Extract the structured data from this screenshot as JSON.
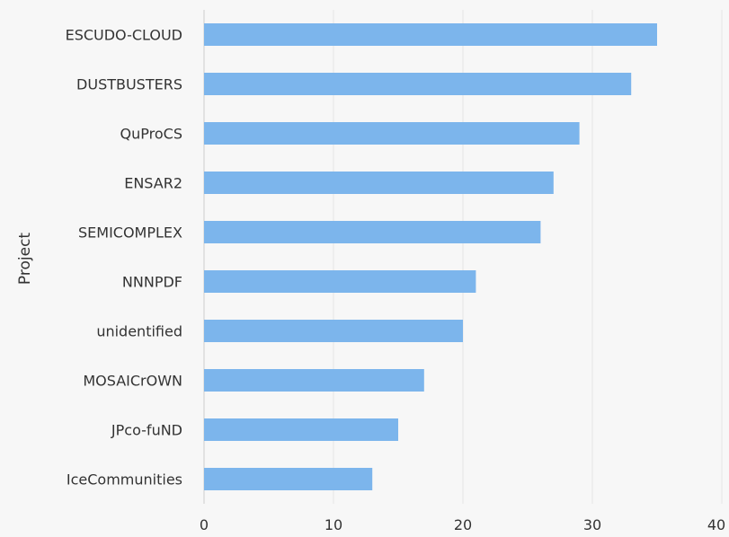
{
  "chart_data": {
    "type": "bar",
    "orientation": "horizontal",
    "title": "",
    "xlabel": "",
    "ylabel": "Project",
    "categories": [
      "ESCUDO-CLOUD",
      "DUSTBUSTERS",
      "QuProCS",
      "ENSAR2",
      "SEMICOMPLEX",
      "NNNPDF",
      "unidentified",
      "MOSAICrOWN",
      "JPco-fuND",
      "IceCommunities"
    ],
    "values": [
      35,
      33,
      29,
      27,
      26,
      21,
      20,
      17,
      15,
      13
    ],
    "xlim": [
      0,
      40
    ],
    "x_ticks": [
      "0",
      "10",
      "20",
      "30",
      "40"
    ],
    "grid": "vertical",
    "legend": "none",
    "colors": {
      "bar": "#7cb5ec",
      "grid": "#e6e6e6",
      "axis": "#cccccc",
      "text": "#333333",
      "background": "#f7f7f7"
    }
  }
}
